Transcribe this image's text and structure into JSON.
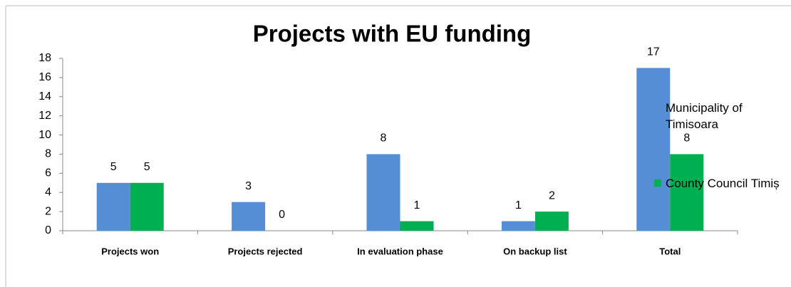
{
  "chart_data": {
    "type": "bar",
    "title": "Projects with EU funding",
    "categories": [
      "Projects won",
      "Projects rejected",
      "In evaluation phase",
      "On backup list",
      "Total"
    ],
    "series": [
      {
        "name": "Municipality of Timisoara",
        "color": "#558ed5",
        "values": [
          5,
          3,
          8,
          1,
          17
        ]
      },
      {
        "name": "County Council Timiș",
        "color": "#00b050",
        "values": [
          5,
          0,
          1,
          2,
          8
        ]
      }
    ],
    "ylim": [
      0,
      18
    ],
    "yticks": [
      0,
      2,
      4,
      6,
      8,
      10,
      12,
      14,
      16,
      18
    ],
    "grid": false,
    "legend": "right"
  }
}
